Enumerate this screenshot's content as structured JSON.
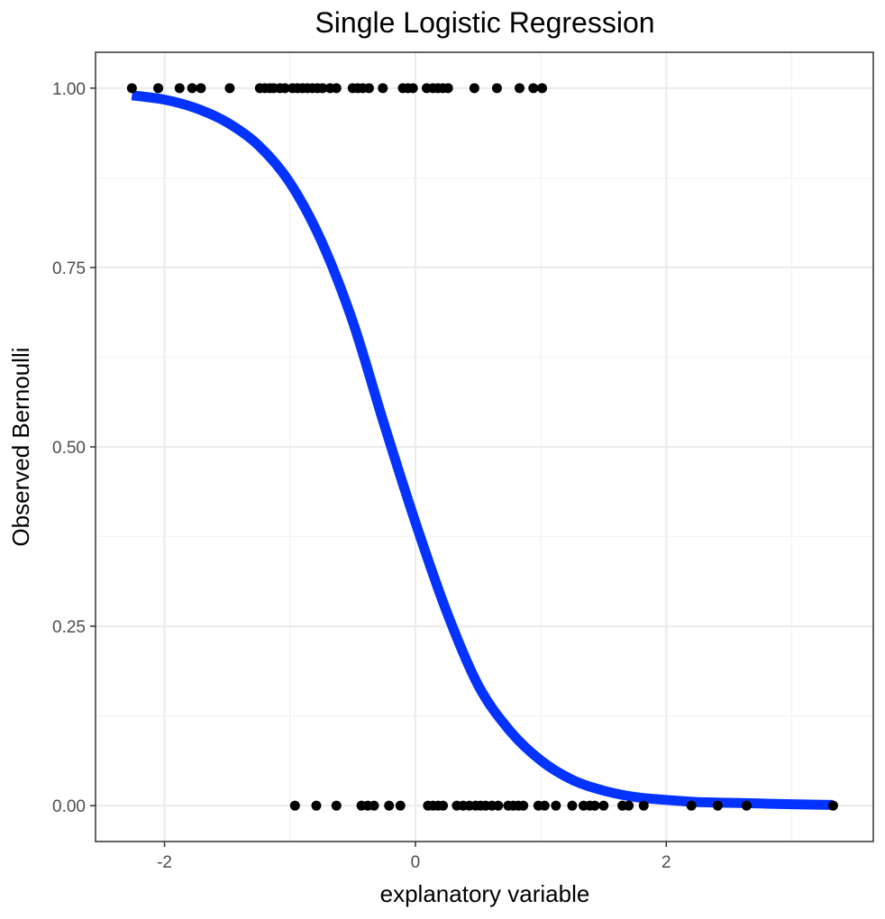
{
  "chart_data": {
    "type": "scatter",
    "title": "Single Logistic Regression",
    "xlabel": "explanatory variable",
    "ylabel": "Observed Bernoulli",
    "xlim": [
      -2.55,
      3.65
    ],
    "ylim": [
      -0.05,
      1.05
    ],
    "x_ticks": [
      -2,
      0,
      2
    ],
    "x_tick_labels": [
      "-2",
      "0",
      "2"
    ],
    "y_ticks": [
      0,
      0.25,
      0.5,
      0.75,
      1
    ],
    "y_tick_labels": [
      "0.00",
      "0.25",
      "0.50",
      "0.75",
      "1.00"
    ],
    "x_minor_ticks": [
      -3,
      -1,
      1,
      3
    ],
    "y_minor_ticks": [
      0.125,
      0.375,
      0.625,
      0.875
    ],
    "grid": true,
    "legend": "none",
    "series": [
      {
        "kind": "points",
        "color": "#000000",
        "points": [
          {
            "x": -2.26,
            "y": 1
          },
          {
            "x": -2.05,
            "y": 1
          },
          {
            "x": -1.88,
            "y": 1
          },
          {
            "x": -1.78,
            "y": 1
          },
          {
            "x": -1.71,
            "y": 1
          },
          {
            "x": -1.48,
            "y": 1
          },
          {
            "x": -1.24,
            "y": 1
          },
          {
            "x": -1.2,
            "y": 1
          },
          {
            "x": -1.16,
            "y": 1
          },
          {
            "x": -1.13,
            "y": 1
          },
          {
            "x": -1.08,
            "y": 1
          },
          {
            "x": -1.04,
            "y": 1
          },
          {
            "x": -0.98,
            "y": 1
          },
          {
            "x": -0.94,
            "y": 1
          },
          {
            "x": -0.9,
            "y": 1
          },
          {
            "x": -0.86,
            "y": 1
          },
          {
            "x": -0.82,
            "y": 1
          },
          {
            "x": -0.78,
            "y": 1
          },
          {
            "x": -0.74,
            "y": 1
          },
          {
            "x": -0.68,
            "y": 1
          },
          {
            "x": -0.63,
            "y": 1
          },
          {
            "x": -0.5,
            "y": 1
          },
          {
            "x": -0.46,
            "y": 1
          },
          {
            "x": -0.42,
            "y": 1
          },
          {
            "x": -0.37,
            "y": 1
          },
          {
            "x": -0.26,
            "y": 1
          },
          {
            "x": -0.1,
            "y": 1
          },
          {
            "x": -0.06,
            "y": 1
          },
          {
            "x": -0.02,
            "y": 1
          },
          {
            "x": 0.09,
            "y": 1
          },
          {
            "x": 0.14,
            "y": 1
          },
          {
            "x": 0.18,
            "y": 1
          },
          {
            "x": 0.22,
            "y": 1
          },
          {
            "x": 0.26,
            "y": 1
          },
          {
            "x": 0.47,
            "y": 1
          },
          {
            "x": 0.65,
            "y": 1
          },
          {
            "x": 0.83,
            "y": 1
          },
          {
            "x": 0.94,
            "y": 1
          },
          {
            "x": 1.01,
            "y": 1
          },
          {
            "x": -0.96,
            "y": 0
          },
          {
            "x": -0.79,
            "y": 0
          },
          {
            "x": -0.63,
            "y": 0
          },
          {
            "x": -0.43,
            "y": 0
          },
          {
            "x": -0.38,
            "y": 0
          },
          {
            "x": -0.33,
            "y": 0
          },
          {
            "x": -0.21,
            "y": 0
          },
          {
            "x": -0.12,
            "y": 0
          },
          {
            "x": 0.1,
            "y": 0
          },
          {
            "x": 0.14,
            "y": 0
          },
          {
            "x": 0.18,
            "y": 0
          },
          {
            "x": 0.22,
            "y": 0
          },
          {
            "x": 0.33,
            "y": 0
          },
          {
            "x": 0.38,
            "y": 0
          },
          {
            "x": 0.43,
            "y": 0
          },
          {
            "x": 0.48,
            "y": 0
          },
          {
            "x": 0.52,
            "y": 0
          },
          {
            "x": 0.56,
            "y": 0
          },
          {
            "x": 0.61,
            "y": 0
          },
          {
            "x": 0.66,
            "y": 0
          },
          {
            "x": 0.74,
            "y": 0
          },
          {
            "x": 0.78,
            "y": 0
          },
          {
            "x": 0.82,
            "y": 0
          },
          {
            "x": 0.86,
            "y": 0
          },
          {
            "x": 0.98,
            "y": 0
          },
          {
            "x": 1.03,
            "y": 0
          },
          {
            "x": 1.12,
            "y": 0
          },
          {
            "x": 1.25,
            "y": 0
          },
          {
            "x": 1.34,
            "y": 0
          },
          {
            "x": 1.39,
            "y": 0
          },
          {
            "x": 1.43,
            "y": 0
          },
          {
            "x": 1.5,
            "y": 0
          },
          {
            "x": 1.65,
            "y": 0
          },
          {
            "x": 1.7,
            "y": 0
          },
          {
            "x": 1.82,
            "y": 0
          },
          {
            "x": 2.2,
            "y": 0
          },
          {
            "x": 2.41,
            "y": 0
          },
          {
            "x": 2.64,
            "y": 0
          },
          {
            "x": 3.33,
            "y": 0
          }
        ]
      },
      {
        "kind": "fitted-curve",
        "color": "#0433ff",
        "x": [
          -2.26,
          -2.0,
          -1.75,
          -1.5,
          -1.25,
          -1.0,
          -0.75,
          -0.5,
          -0.25,
          0.0,
          0.25,
          0.5,
          0.75,
          1.0,
          1.25,
          1.5,
          1.75,
          2.0,
          2.25,
          2.5,
          2.75,
          3.0,
          3.33
        ],
        "y": [
          0.99,
          0.984,
          0.972,
          0.952,
          0.92,
          0.868,
          0.787,
          0.675,
          0.532,
          0.395,
          0.27,
          0.168,
          0.105,
          0.063,
          0.036,
          0.021,
          0.012,
          0.008,
          0.005,
          0.004,
          0.003,
          0.002,
          0.001
        ]
      }
    ]
  }
}
